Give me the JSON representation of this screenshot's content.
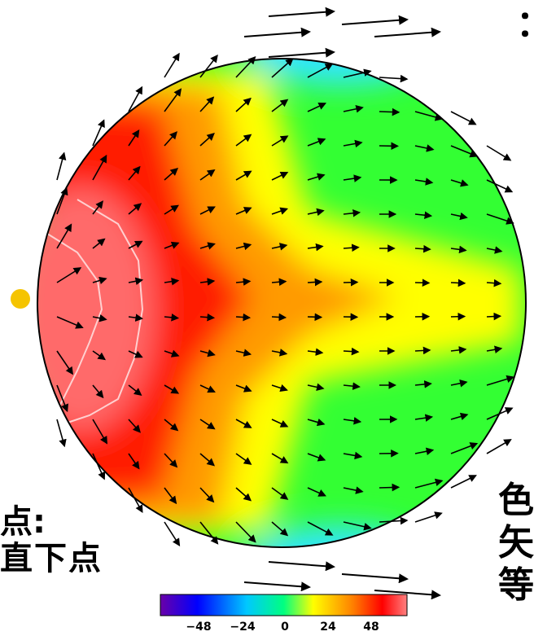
{
  "figure": {
    "left_label_line1": "点:",
    "left_label_line2": "直下点",
    "right_label_line1": "色",
    "right_label_line2": "矢",
    "right_label_line3": "等",
    "corner_mark": "：",
    "subsolar_marker_color": "#f5c400"
  },
  "colorbar": {
    "ticks": [
      "−48",
      "−24",
      "0",
      "24",
      "48"
    ],
    "tick_values": [
      -48,
      -24,
      0,
      24,
      48
    ],
    "range": [
      -60,
      60
    ],
    "colors": [
      "#6a00a8",
      "#0000ff",
      "#00c8ff",
      "#00ff80",
      "#ffff00",
      "#ff8000",
      "#ff0000",
      "#ff8080"
    ]
  },
  "map_colors": {
    "warm_center": "#ff6a6a",
    "red": "#ff1a00",
    "orange": "#ff9a00",
    "yellow": "#ffff00",
    "green": "#33ff33",
    "cyan": "#33e6ff",
    "outline": "#000000",
    "contour": "#ffd0d0"
  }
}
